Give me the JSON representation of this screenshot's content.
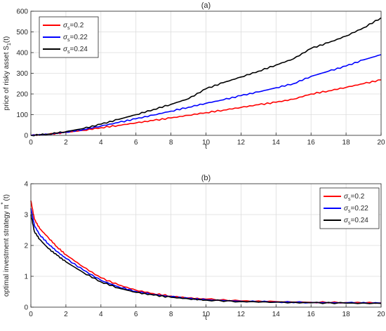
{
  "chart_data": [
    {
      "type": "line",
      "title": "(a)",
      "xlabel": "t",
      "ylabel_main": "price of risky asset S",
      "ylabel_sub": "1",
      "ylabel_end": "(t)",
      "xlim": [
        0,
        20
      ],
      "ylim": [
        0,
        600
      ],
      "xticks": [
        "0",
        "2",
        "4",
        "6",
        "8",
        "10",
        "12",
        "14",
        "16",
        "18",
        "20"
      ],
      "yticks": [
        "0",
        "100",
        "200",
        "300",
        "400",
        "500",
        "600"
      ],
      "grid": true,
      "legend_position": "top-left",
      "x": [
        0,
        1,
        2,
        3,
        4,
        5,
        6,
        7,
        8,
        9,
        10,
        11,
        12,
        13,
        14,
        15,
        16,
        17,
        18,
        19,
        20
      ],
      "series": [
        {
          "sym": "σ",
          "sub": "s",
          "eq": "=0.2",
          "color": "#ff0000",
          "values": [
            0,
            5,
            14,
            24,
            37,
            48,
            60,
            72,
            84,
            97,
            110,
            122,
            135,
            148,
            160,
            175,
            200,
            215,
            232,
            250,
            268
          ]
        },
        {
          "sym": "σ",
          "sub": "s",
          "eq": "=0.22",
          "color": "#0000ff",
          "values": [
            0,
            5,
            16,
            28,
            45,
            62,
            80,
            98,
            117,
            136,
            155,
            172,
            192,
            210,
            230,
            250,
            285,
            310,
            335,
            365,
            390
          ]
        },
        {
          "sym": "σ",
          "sub": "s",
          "eq": "=0.24",
          "color": "#000000",
          "values": [
            0,
            6,
            18,
            33,
            54,
            77,
            100,
            125,
            150,
            177,
            225,
            255,
            282,
            310,
            340,
            370,
            420,
            448,
            480,
            520,
            568
          ]
        }
      ]
    },
    {
      "type": "line",
      "title": "(b)",
      "xlabel": "t",
      "ylabel_main": "optimal investment strategy π",
      "ylabel_sup": "*",
      "ylabel_end": "(t)",
      "xlim": [
        0,
        20
      ],
      "ylim": [
        0,
        4
      ],
      "xticks": [
        "0",
        "2",
        "4",
        "6",
        "8",
        "10",
        "12",
        "14",
        "16",
        "18",
        "20"
      ],
      "yticks": [
        "0",
        "1",
        "2",
        "3",
        "4"
      ],
      "grid": true,
      "legend_position": "top-right",
      "x": [
        0,
        0.2,
        0.5,
        1,
        1.5,
        2,
        3,
        4,
        5,
        6,
        7,
        8,
        9,
        10,
        12,
        14,
        16,
        18,
        20
      ],
      "series": [
        {
          "sym": "σ",
          "sub": "s",
          "eq": "=0.2",
          "color": "#ff0000",
          "values": [
            3.45,
            2.85,
            2.55,
            2.25,
            1.95,
            1.7,
            1.3,
            0.95,
            0.72,
            0.55,
            0.44,
            0.36,
            0.3,
            0.26,
            0.2,
            0.18,
            0.16,
            0.15,
            0.14
          ]
        },
        {
          "sym": "σ",
          "sub": "s",
          "eq": "=0.22",
          "color": "#0000ff",
          "values": [
            3.2,
            2.65,
            2.35,
            2.05,
            1.8,
            1.58,
            1.2,
            0.87,
            0.66,
            0.51,
            0.41,
            0.34,
            0.28,
            0.24,
            0.19,
            0.17,
            0.15,
            0.14,
            0.13
          ]
        },
        {
          "sym": "σ",
          "sub": "s",
          "eq": "=0.24",
          "color": "#000000",
          "values": [
            3.0,
            2.45,
            2.2,
            1.9,
            1.68,
            1.47,
            1.12,
            0.82,
            0.62,
            0.48,
            0.39,
            0.32,
            0.27,
            0.23,
            0.18,
            0.16,
            0.14,
            0.13,
            0.12
          ]
        }
      ]
    }
  ]
}
